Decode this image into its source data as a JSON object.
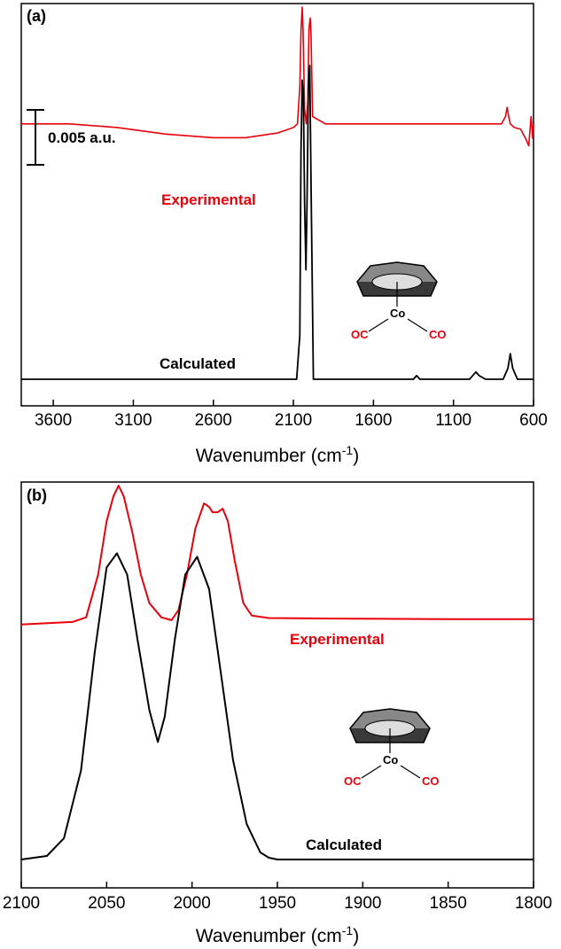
{
  "chart_data": [
    {
      "panel": "(a)",
      "type": "line",
      "xlabel": "Wavenumber (cm",
      "xlabel_sup": "-1",
      "xlabel_close": ")",
      "xlim": [
        3800,
        600
      ],
      "xticks": [
        3600,
        3100,
        2600,
        2100,
        1600,
        1100,
        600
      ],
      "scalebar_label": "0.005 a.u.",
      "molecule": {
        "metal": "Co",
        "ligand_left": "OC",
        "ligand_right": "CO"
      },
      "series": [
        {
          "name": "Experimental",
          "color": "#e8000b",
          "baseline": 0.7,
          "x": [
            3800,
            3500,
            3200,
            2900,
            2600,
            2400,
            2200,
            2100,
            2075,
            2060,
            2052,
            2045,
            2040,
            2030,
            2020,
            2010,
            2003,
            1995,
            1990,
            1980,
            1900,
            1700,
            1400,
            1100,
            950,
            800,
            775,
            765,
            755,
            745,
            720,
            680,
            650,
            630,
            615,
            605,
            600
          ],
          "y": [
            0.7,
            0.7,
            0.69,
            0.672,
            0.662,
            0.662,
            0.675,
            0.69,
            0.7,
            0.8,
            0.96,
            1.02,
            0.96,
            0.74,
            0.7,
            0.76,
            0.96,
            0.99,
            0.95,
            0.72,
            0.7,
            0.7,
            0.7,
            0.7,
            0.7,
            0.7,
            0.72,
            0.745,
            0.72,
            0.7,
            0.69,
            0.685,
            0.66,
            0.64,
            0.72,
            0.66,
            0.7
          ]
        },
        {
          "name": "Calculated",
          "color": "#000000",
          "baseline": 0.0,
          "x": [
            3800,
            2200,
            2080,
            2060,
            2053,
            2045,
            2038,
            2030,
            2022,
            2015,
            2006,
            1998,
            1990,
            1975,
            1900,
            1350,
            1330,
            1310,
            1100,
            1000,
            960,
            940,
            900,
            790,
            760,
            745,
            730,
            700,
            600
          ],
          "y": [
            0,
            0,
            0,
            0.12,
            0.62,
            0.82,
            0.78,
            0.48,
            0.3,
            0.48,
            0.8,
            0.86,
            0.55,
            0.0,
            0,
            0,
            0.01,
            0,
            0,
            0,
            0.02,
            0.01,
            0,
            0,
            0.03,
            0.07,
            0.03,
            0,
            0
          ]
        }
      ]
    },
    {
      "panel": "(b)",
      "type": "line",
      "xlabel": "Wavenumber (cm",
      "xlabel_sup": "-1",
      "xlabel_close": ")",
      "xlim": [
        2100,
        1800
      ],
      "xticks": [
        2100,
        2050,
        2000,
        1950,
        1900,
        1850,
        1800
      ],
      "molecule": {
        "metal": "Co",
        "ligand_left": "OC",
        "ligand_right": "CO"
      },
      "series": [
        {
          "name": "Experimental",
          "color": "#e8000b",
          "baseline": 0.66,
          "x": [
            2100,
            2070,
            2062,
            2055,
            2050,
            2046,
            2043,
            2040,
            2035,
            2030,
            2025,
            2018,
            2012,
            2008,
            2003,
            1998,
            1993,
            1990,
            1988,
            1985,
            1982,
            1979,
            1975,
            1970,
            1965,
            1955,
            1900,
            1850,
            1800
          ],
          "y": [
            0.66,
            0.667,
            0.68,
            0.8,
            0.95,
            1.02,
            1.05,
            1.02,
            0.92,
            0.8,
            0.72,
            0.68,
            0.672,
            0.7,
            0.8,
            0.93,
            1.0,
            0.99,
            0.975,
            0.975,
            0.985,
            0.95,
            0.84,
            0.72,
            0.685,
            0.678,
            0.676,
            0.675,
            0.675
          ]
        },
        {
          "name": "Calculated",
          "color": "#000000",
          "baseline": 0.0,
          "x": [
            2100,
            2085,
            2075,
            2065,
            2057,
            2050,
            2044,
            2038,
            2032,
            2025,
            2020,
            2016,
            2010,
            2004,
            1997,
            1990,
            1983,
            1976,
            1968,
            1960,
            1955,
            1950,
            1900,
            1850,
            1800
          ],
          "y": [
            0,
            0.01,
            0.06,
            0.25,
            0.58,
            0.82,
            0.86,
            0.8,
            0.62,
            0.42,
            0.33,
            0.4,
            0.62,
            0.8,
            0.85,
            0.76,
            0.52,
            0.28,
            0.1,
            0.02,
            0.005,
            0,
            0,
            0,
            0
          ]
        }
      ]
    }
  ]
}
